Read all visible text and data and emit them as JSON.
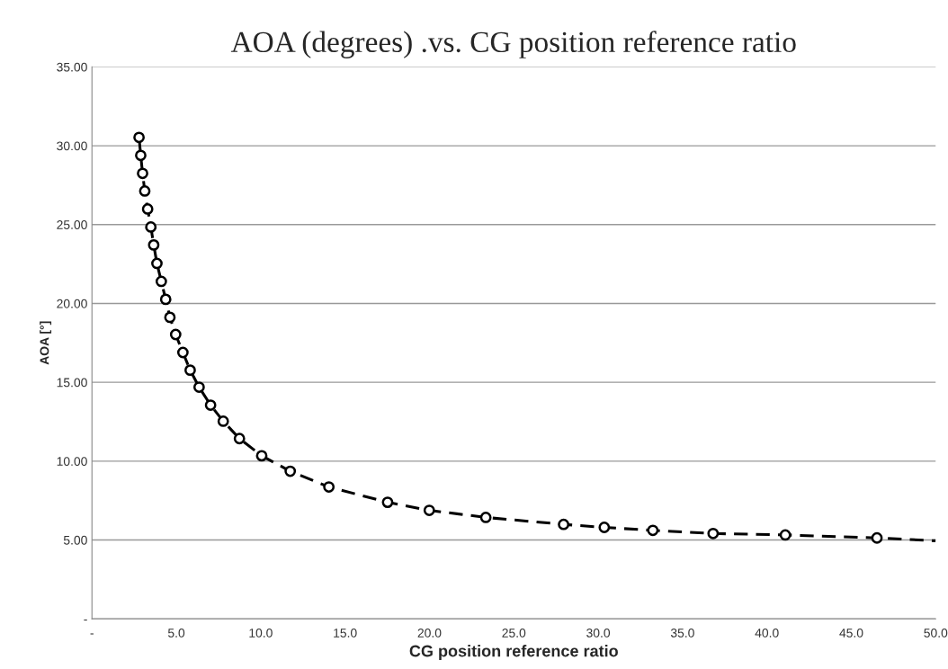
{
  "chart_data": {
    "type": "scatter",
    "title": "AOA (degrees) .vs. CG position reference ratio",
    "xlabel": "CG position reference ratio",
    "ylabel": "AOA [°]",
    "xlim": [
      0,
      50
    ],
    "xticks": [
      {
        "value": 0,
        "label": "-"
      },
      {
        "value": 5,
        "label": "5.0"
      },
      {
        "value": 10,
        "label": "10.0"
      },
      {
        "value": 15,
        "label": "15.0"
      },
      {
        "value": 20,
        "label": "20.0"
      },
      {
        "value": 25,
        "label": "25.0"
      },
      {
        "value": 30,
        "label": "30.0"
      },
      {
        "value": 35,
        "label": "35.0"
      },
      {
        "value": 40,
        "label": "40.0"
      },
      {
        "value": 45,
        "label": "45.0"
      },
      {
        "value": 50,
        "label": "50.0"
      }
    ],
    "ylim": [
      0,
      35
    ],
    "yticks": [
      {
        "value": 0,
        "label": "-"
      },
      {
        "value": 5,
        "label": "5.00"
      },
      {
        "value": 10,
        "label": "10.00"
      },
      {
        "value": 15,
        "label": "15.00"
      },
      {
        "value": 20,
        "label": "20.00"
      },
      {
        "value": 25,
        "label": "25.00"
      },
      {
        "value": 30,
        "label": "30.00"
      },
      {
        "value": 35,
        "label": "35.00"
      }
    ],
    "grid": "y",
    "legend": false,
    "series": [
      {
        "type": "line",
        "line_style": "dashed",
        "marker": "none",
        "color": "#000000",
        "x": [
          2.79,
          2.89,
          3.0,
          3.13,
          3.3,
          3.49,
          3.66,
          3.85,
          4.11,
          4.37,
          4.62,
          4.96,
          5.39,
          5.82,
          6.35,
          7.03,
          7.78,
          8.74,
          10.06,
          11.75,
          14.04,
          17.52,
          19.99,
          23.34,
          27.95,
          30.36,
          33.24,
          36.81,
          41.09,
          46.52,
          50
        ],
        "values": [
          30.53,
          29.39,
          28.25,
          27.13,
          25.99,
          24.85,
          23.71,
          22.54,
          21.4,
          20.26,
          19.12,
          18.03,
          16.89,
          15.77,
          14.69,
          13.55,
          12.53,
          11.43,
          10.34,
          9.36,
          8.36,
          7.39,
          6.88,
          6.43,
          5.99,
          5.8,
          5.61,
          5.41,
          5.32,
          5.13,
          4.95
        ]
      },
      {
        "marker": "circle",
        "color": "#000000",
        "x": [
          2.79,
          2.89,
          3.0,
          3.13,
          3.3,
          3.49,
          3.66,
          3.85,
          4.11,
          4.37,
          4.62,
          4.96,
          5.39,
          5.82,
          6.35,
          7.03,
          7.78,
          8.74,
          10.06,
          11.75,
          14.04,
          17.52,
          19.99,
          23.34,
          27.95,
          30.36,
          33.24,
          36.81,
          41.09,
          46.52
        ],
        "values": [
          30.53,
          29.39,
          28.25,
          27.13,
          25.99,
          24.85,
          23.71,
          22.54,
          21.4,
          20.26,
          19.12,
          18.03,
          16.89,
          15.77,
          14.69,
          13.55,
          12.53,
          11.43,
          10.34,
          9.36,
          8.36,
          7.39,
          6.88,
          6.43,
          5.99,
          5.8,
          5.61,
          5.41,
          5.32,
          5.13
        ]
      }
    ]
  }
}
